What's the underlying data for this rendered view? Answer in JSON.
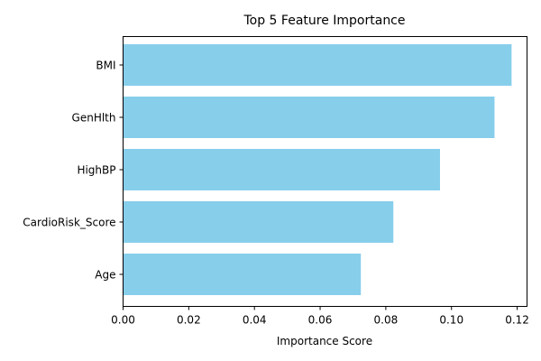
{
  "chart_data": {
    "type": "bar",
    "orientation": "horizontal",
    "title": "Top 5 Feature Importance",
    "xlabel": "Importance Score",
    "ylabel": "",
    "categories": [
      "BMI",
      "GenHlth",
      "HighBP",
      "CardioRisk_Score",
      "Age"
    ],
    "values": [
      0.1183,
      0.1131,
      0.0965,
      0.0823,
      0.0724
    ],
    "xlim": [
      0,
      0.123
    ],
    "xticks": [
      "0.00",
      "0.02",
      "0.04",
      "0.06",
      "0.08",
      "0.10",
      "0.12"
    ],
    "grid": false,
    "legend": "none",
    "bar_color": "#87ceeb"
  }
}
